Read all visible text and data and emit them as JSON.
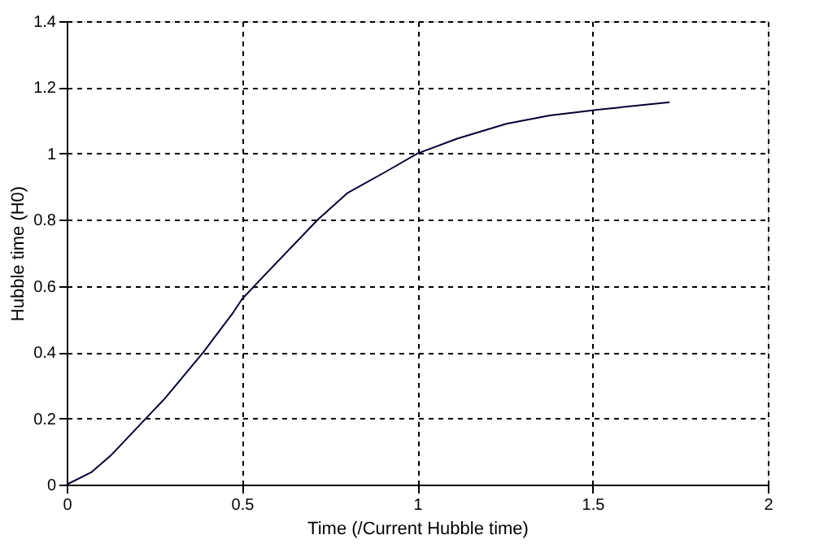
{
  "chart_data": {
    "type": "line",
    "xlabel": "Time (/Current Hubble time)",
    "ylabel": "Hubble time (H0)",
    "x": [
      0,
      0.07,
      0.125,
      0.226,
      0.28,
      0.39,
      0.475,
      0.5,
      0.553,
      0.716,
      0.8,
      0.91,
      1.0,
      1.114,
      1.254,
      1.378,
      1.519,
      1.72
    ],
    "series": [
      {
        "color": "#000033",
        "values": [
          0,
          0.037,
          0.087,
          0.2,
          0.26,
          0.4,
          0.52,
          0.56,
          0.62,
          0.8,
          0.88,
          0.945,
          1.0,
          1.045,
          1.09,
          1.115,
          1.133,
          1.155
        ]
      }
    ],
    "xlim": [
      0,
      2
    ],
    "xticks": [
      0,
      0.5,
      1,
      1.5,
      2
    ],
    "ylim": [
      0,
      1.4
    ],
    "yticks": [
      0,
      0.2,
      0.4,
      0.6,
      0.8,
      1,
      1.2,
      1.4
    ],
    "grid": true,
    "line_style": "solid",
    "marker": "none"
  }
}
